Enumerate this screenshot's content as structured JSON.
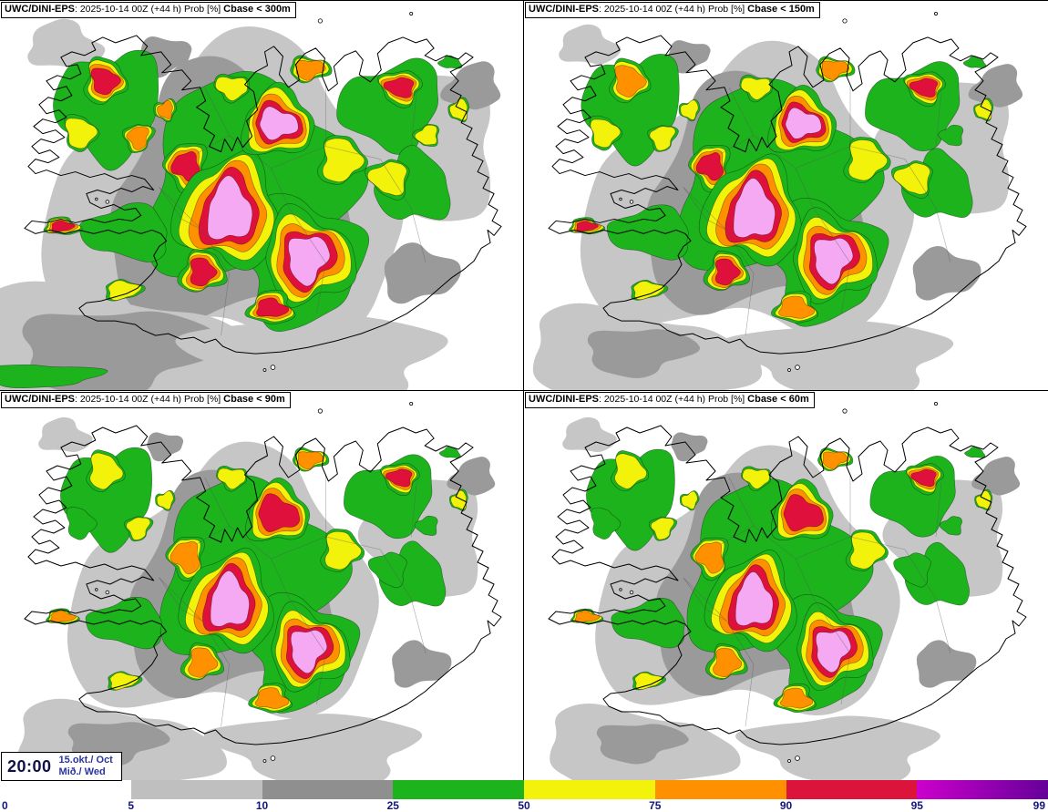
{
  "header": {
    "model": "UWC/DINI-EPS",
    "colon": ": ",
    "run_info": "2025-10-14 00Z (+44 h) Prob [%] "
  },
  "panels": [
    {
      "threshold": "Cbase < 300m"
    },
    {
      "threshold": "Cbase < 150m"
    },
    {
      "threshold": "Cbase < 90m"
    },
    {
      "threshold": "Cbase < 60m"
    }
  ],
  "timestamp": {
    "time": "20:00",
    "date": "15.okt./ Oct",
    "day": "Mið./ Wed"
  },
  "legend": {
    "ticks": [
      "0",
      "5",
      "10",
      "25",
      "50",
      "75",
      "90",
      "95",
      "99"
    ],
    "segments": [
      {
        "from": "0",
        "to": "5",
        "color": "#ffffff"
      },
      {
        "from": "5",
        "to": "10",
        "color": "#bfbfbf"
      },
      {
        "from": "10",
        "to": "25",
        "color": "#8f8f8f"
      },
      {
        "from": "25",
        "to": "50",
        "color": "#1db31d"
      },
      {
        "from": "50",
        "to": "75",
        "color": "#f2f20a"
      },
      {
        "from": "75",
        "to": "90",
        "color": "#ff9000"
      },
      {
        "from": "90",
        "to": "95",
        "color": "#dc143c"
      },
      {
        "from": "95",
        "to": "99",
        "color": "#cc00cc",
        "color2": "#660099"
      }
    ]
  },
  "map_colors": {
    "light_gray": "#c6c6c6",
    "mid_gray": "#9a9a9a",
    "green": "#1db31d",
    "yellow": "#f2f20a",
    "orange": "#ff9000",
    "red": "#e0103c",
    "pink": "#f4a9f2",
    "coast": "#000000"
  }
}
